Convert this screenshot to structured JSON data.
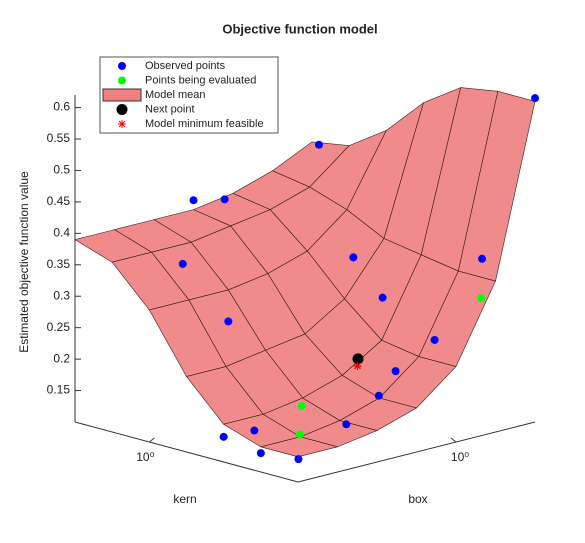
{
  "chart_data": {
    "type": "surface3d",
    "title": "Objective function model",
    "xlabel": "kern",
    "ylabel": "box",
    "zlabel": "Estimated objective function value",
    "xscale": "log",
    "yscale": "log",
    "xlim": [
      -2,
      1
    ],
    "ylim": [
      -2,
      1
    ],
    "zlim": [
      0.1,
      0.62
    ],
    "xticks": [
      {
        "value": 0,
        "label": "10⁰"
      }
    ],
    "yticks": [
      {
        "value": 0,
        "label": "10⁰"
      }
    ],
    "zticks": [
      0.15,
      0.2,
      0.25,
      0.3,
      0.35,
      0.4,
      0.45,
      0.5,
      0.55,
      0.6
    ],
    "legend": "upper left",
    "series": [
      {
        "name": "Observed points",
        "kind": "scatter",
        "marker": "o",
        "color": "#0000ff",
        "x": [
          -2,
          -1.5,
          0.8,
          1,
          0.9,
          0.4,
          0,
          -0.3,
          -0.8,
          -1.9,
          -1.5,
          -1,
          -1.2,
          -1.8,
          -1.6,
          -1.4,
          -1.5
        ],
        "y": [
          1,
          0.8,
          0.9,
          -0.5,
          -0.2,
          -1.2,
          -1,
          0.3,
          0.2,
          -1.9,
          -2,
          -2,
          -1.8,
          -1.2,
          -0.6,
          -0.2,
          0.2
        ],
        "z": [
          0.615,
          0.35,
          0.455,
          0.405,
          0.4,
          0.345,
          0.26,
          0.33,
          0.285,
          0.13,
          0.13,
          0.14,
          0.15,
          0.16,
          0.18,
          0.2,
          0.24
        ]
      },
      {
        "name": "Points being evaluated",
        "kind": "scatter",
        "marker": "o",
        "color": "#00ff00",
        "x": [
          -1.2,
          -1.7,
          -1.6
        ],
        "y": [
          -1.2,
          0.6,
          -1.6
        ],
        "z": [
          0.17,
          0.3,
          0.15
        ]
      },
      {
        "name": "Model mean",
        "kind": "surface",
        "color": "#f08080",
        "x": [
          -2,
          -1.5,
          -1,
          -0.5,
          0,
          0.5,
          1
        ],
        "y": [
          -2,
          -1.5,
          -1,
          -0.5,
          0,
          0.5,
          1
        ],
        "z": [
          [
            0.14,
            0.14,
            0.15,
            0.17,
            0.22,
            0.34,
            0.61
          ],
          [
            0.14,
            0.14,
            0.15,
            0.17,
            0.22,
            0.34,
            0.61
          ],
          [
            0.16,
            0.16,
            0.17,
            0.19,
            0.23,
            0.35,
            0.6
          ],
          [
            0.22,
            0.22,
            0.23,
            0.24,
            0.28,
            0.36,
            0.56
          ],
          [
            0.31,
            0.31,
            0.31,
            0.32,
            0.34,
            0.39,
            0.5
          ],
          [
            0.37,
            0.37,
            0.37,
            0.38,
            0.39,
            0.41,
            0.46
          ],
          [
            0.39,
            0.39,
            0.39,
            0.39,
            0.4,
            0.42,
            0.45
          ]
        ]
      },
      {
        "name": "Next point",
        "kind": "scatter",
        "marker": "O",
        "color": "#000000",
        "x": [
          -1
        ],
        "y": [
          -0.3
        ],
        "z": [
          0.21
        ]
      },
      {
        "name": "Model minimum feasible",
        "kind": "scatter",
        "marker": "*",
        "color": "#ff0000",
        "x": [
          -1.1
        ],
        "y": [
          -0.4
        ],
        "z": [
          0.205
        ]
      }
    ]
  }
}
